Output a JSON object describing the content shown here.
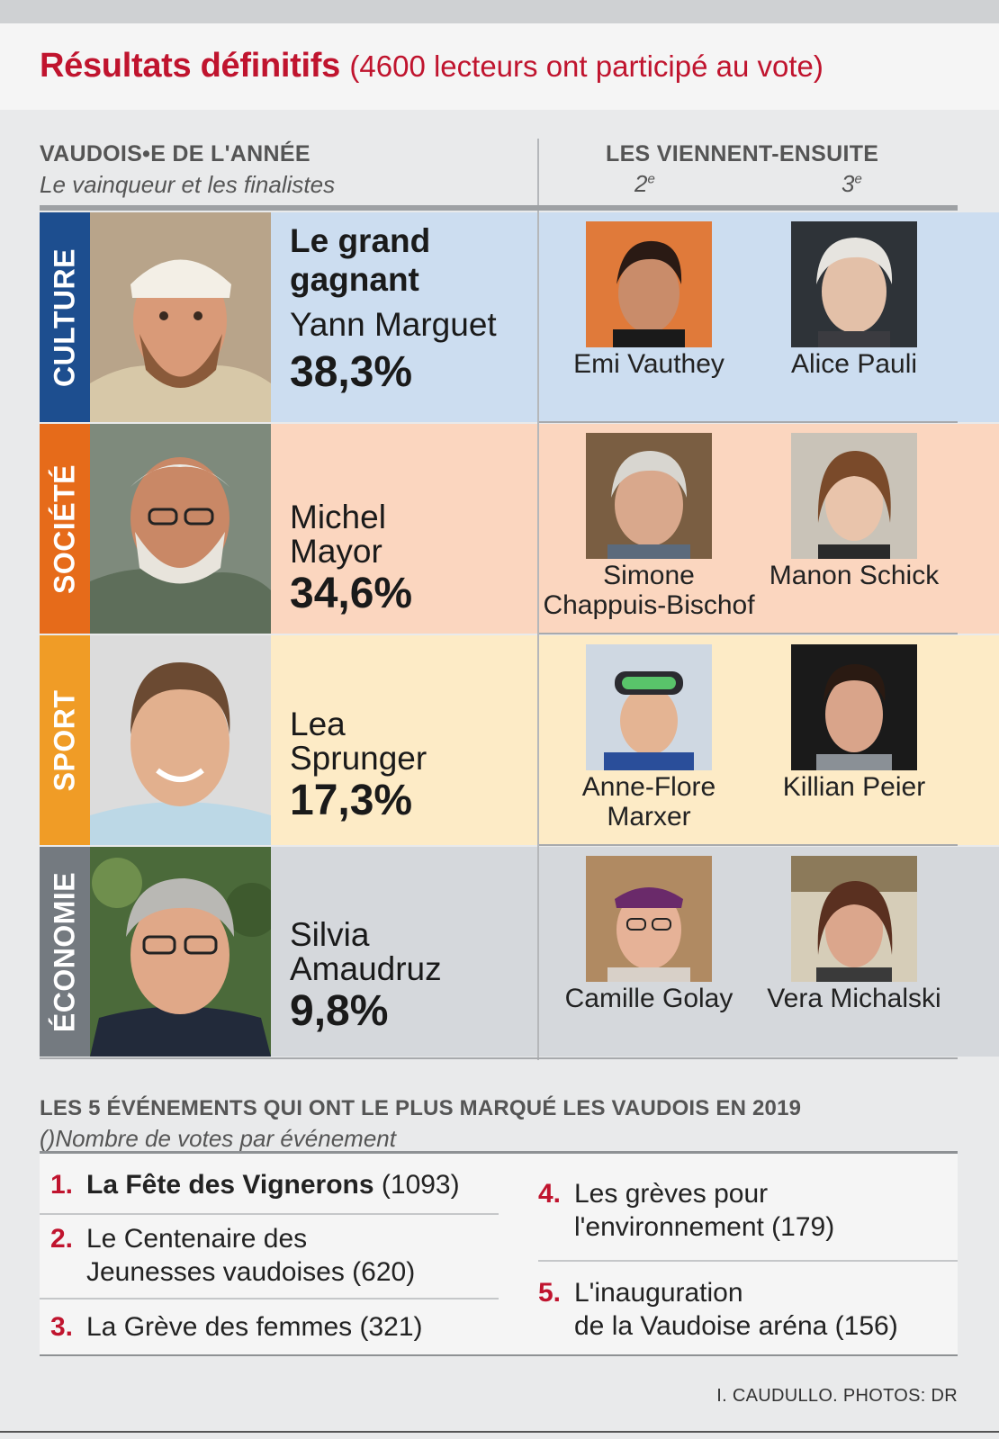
{
  "header": {
    "title_strong": "Résultats définitifs",
    "title_rest": "(4600 lecteurs ont participé au vote)"
  },
  "left_column": {
    "heading": "VAUDOIS•E DE L'ANNÉE",
    "subheading": "Le vainqueur et les finalistes"
  },
  "right_column": {
    "heading": "LES VIENNENT-ENSUITE",
    "rank2": "2",
    "rank2_suffix": "e",
    "rank3": "3",
    "rank3_suffix": "e"
  },
  "categories": [
    {
      "label": "CULTURE",
      "color": "#1d4e8f",
      "bg": "#ccddf0",
      "winner_label": "Le grand gagnant",
      "winner": "Yann Marguet",
      "percent": "38,3%",
      "second": "Emi Vauthey",
      "third": "Alice Pauli"
    },
    {
      "label": "SOCIÉTÉ",
      "color": "#e66b1a",
      "bg": "#fbd6bf",
      "winner_label": "",
      "winner": "Michel Mayor",
      "percent": "34,6%",
      "second": "Simone Chappuis-Bischof",
      "third": "Manon Schick"
    },
    {
      "label": "SPORT",
      "color": "#f09c26",
      "bg": "#fdebc6",
      "winner_label": "",
      "winner": "Lea Sprunger",
      "percent": "17,3%",
      "second": "Anne-Flore Marxer",
      "third": "Killian Peier"
    },
    {
      "label": "ÉCONOMIE",
      "color": "#747a80",
      "bg": "#d5d8dc",
      "winner_label": "",
      "winner": "Silvia Amaudruz",
      "percent": "9,8%",
      "second": "Camille Golay",
      "third": "Vera Michalski"
    }
  ],
  "events": {
    "heading": "LES 5 ÉVÉNEMENTS QUI ONT LE PLUS MARQUÉ LES VAUDOIS EN 2019",
    "subheading": "()Nombre de votes par événement",
    "items": [
      {
        "rank": "1.",
        "line1": "La Fête des Vignerons",
        "count": "(1093)"
      },
      {
        "rank": "2.",
        "line1": "Le Centenaire des",
        "line2": "Jeunesses vaudoises (620)"
      },
      {
        "rank": "3.",
        "line1": "La Grève des femmes (321)"
      },
      {
        "rank": "4.",
        "line1": "Les grèves pour",
        "line2": "l'environnement (179)"
      },
      {
        "rank": "5.",
        "line1": "L'inauguration",
        "line2": "de la Vaudoise aréna (156)"
      }
    ]
  },
  "credit": "I. CAUDULLO. PHOTOS: DR"
}
